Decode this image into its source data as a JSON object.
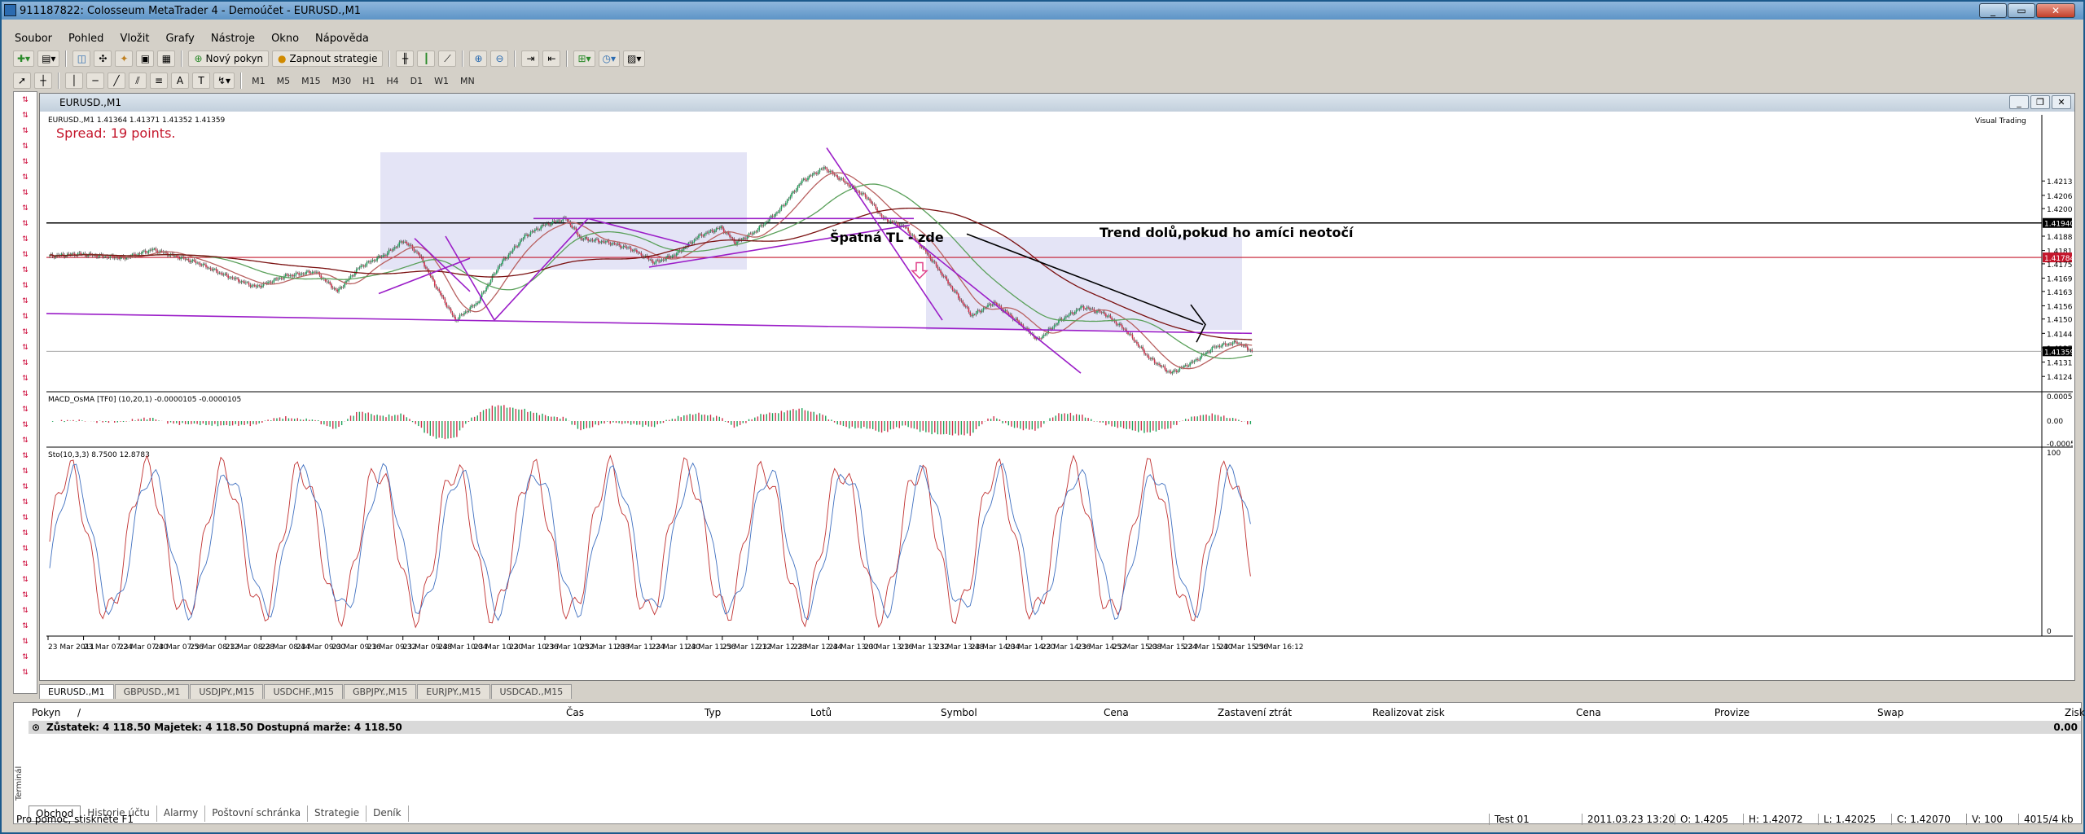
{
  "window": {
    "title": "911187822: Colosseum MetaTrader 4 - Demoúčet - EURUSD.,M1",
    "min": "_",
    "max": "▭",
    "close": "✕"
  },
  "menu": [
    "Soubor",
    "Pohled",
    "Vložit",
    "Grafy",
    "Nástroje",
    "Okno",
    "Nápověda"
  ],
  "toolbar": {
    "new_order": "Nový pokyn",
    "autotrade": "Zapnout strategie",
    "timeframes": [
      "M1",
      "M5",
      "M15",
      "M30",
      "H1",
      "H4",
      "D1",
      "W1",
      "MN"
    ]
  },
  "child": {
    "title": "EURUSD.,M1"
  },
  "chart": {
    "header": "EURUSD.,M1  1.41364 1.41371 1.41352 1.41359",
    "spread": "Spread: 19 points.",
    "visual": "Visual Trading",
    "label_bad_tl": "Špatná TL - zde",
    "label_trend": "Trend dolů,pokud ho amíci neotočí",
    "price_ticks": [
      "1.42130",
      "1.42065",
      "1.42005",
      "1.41940",
      "1.41880",
      "1.41815",
      "1.41784",
      "1.41755",
      "1.41690",
      "1.41630",
      "1.41565",
      "1.41505",
      "1.41440",
      "1.41375",
      "1.41359",
      "1.41310",
      "1.41245"
    ],
    "current_price": "1.41359",
    "red_line_price": "1.41784",
    "black_line_price": "1.41940",
    "macd_label": "MACD_OsMA [TF0] (10,20,1) -0.0000105 -0.0000105",
    "macd_ticks": [
      "0.000520",
      "0.00",
      "-0.000579"
    ],
    "stoch_label": "Sto(10,3,3) 8.7500 12.8783",
    "stoch_ticks": [
      "100",
      "0"
    ],
    "time_ticks": [
      "23 Mar 2011",
      "23 Mar 07:24",
      "23 Mar 07:40",
      "23 Mar 07:56",
      "23 Mar 08:12",
      "23 Mar 08:28",
      "23 Mar 08:44",
      "23 Mar 09:00",
      "23 Mar 09:16",
      "23 Mar 09:32",
      "23 Mar 09:48",
      "23 Mar 10:04",
      "23 Mar 10:20",
      "23 Mar 10:36",
      "23 Mar 10:52",
      "23 Mar 11:08",
      "23 Mar 11:24",
      "23 Mar 11:40",
      "23 Mar 11:56",
      "23 Mar 12:12",
      "23 Mar 12:28",
      "23 Mar 12:44",
      "23 Mar 13:00",
      "23 Mar 13:16",
      "23 Mar 13:32",
      "23 Mar 13:48",
      "23 Mar 14:04",
      "23 Mar 14:20",
      "23 Mar 14:36",
      "23 Mar 14:52",
      "23 Mar 15:08",
      "23 Mar 15:24",
      "23 Mar 15:40",
      "23 Mar 15:56",
      "23 Mar 16:12"
    ],
    "colors": {
      "bull": "#1ea35a",
      "bear": "#d0304a",
      "trend": "#9b1ec8",
      "red_line": "#c4172c",
      "box": "#e4e4f6"
    }
  },
  "chart_tabs": [
    "EURUSD.,M1",
    "GBPUSD.,M1",
    "USDJPY.,M15",
    "USDCHF.,M15",
    "GBPJPY.,M15",
    "EURJPY.,M15",
    "USDCAD.,M15"
  ],
  "terminal": {
    "columns": [
      "Pokyn",
      "/",
      "Čas",
      "Typ",
      "Lotů",
      "Symbol",
      "Cena",
      "Zastavení ztrát",
      "Realizovat zisk",
      "Cena",
      "Provize",
      "Swap",
      "Zisk"
    ],
    "balance": "Zůstatek: 4 118.50  Majetek: 4 118.50  Dostupná marže: 4 118.50",
    "balance_profit": "0.00",
    "tabs": [
      "Obchod",
      "Historie účtu",
      "Alarmy",
      "Poštovní schránka",
      "Strategie",
      "Deník"
    ],
    "side_label": "Terminál"
  },
  "status": {
    "help": "Pro pomoc, stiskněte F1",
    "profile": "Test 01",
    "datetime": "2011.03.23 13:20",
    "open": "O: 1.4205",
    "high": "H: 1.42072",
    "low": "L: 1.42025",
    "close": "C: 1.42070",
    "volume": "V: 100",
    "traffic": "4015/4 kb"
  }
}
